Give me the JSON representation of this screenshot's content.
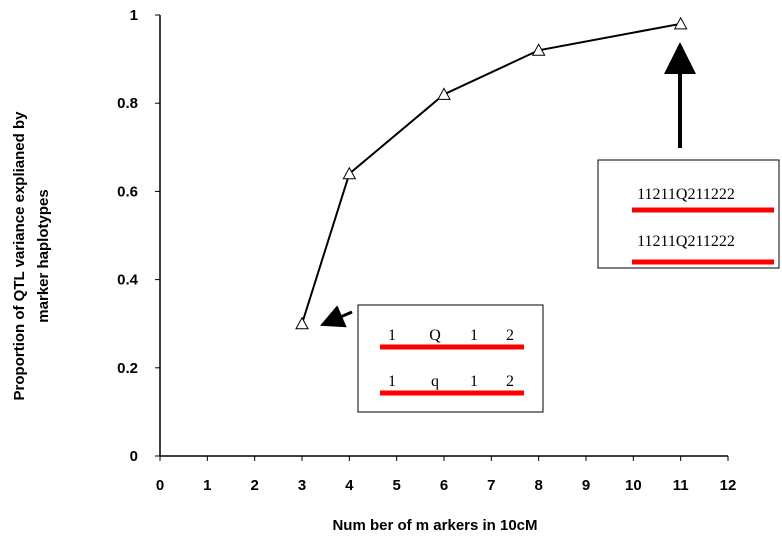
{
  "chart_data": {
    "type": "line",
    "xlabel": "Num ber of m arkers in 10cM",
    "ylabel": "Proportion of QTL variance explianed by",
    "ylabel2": "marker haplotypes",
    "xlim": [
      0,
      12
    ],
    "ylim": [
      0,
      1
    ],
    "x_ticks": [
      "0",
      "1",
      "2",
      "3",
      "4",
      "5",
      "6",
      "7",
      "8",
      "9",
      "10",
      "11",
      "12"
    ],
    "y_ticks": [
      "0",
      "0.2",
      "0.4",
      "0.6",
      "0.8",
      "1"
    ],
    "marker": "open-triangle",
    "line_color": "#000000",
    "grid": false,
    "series": [
      {
        "x": [
          3,
          4,
          6,
          8,
          11
        ],
        "y": [
          0.3,
          0.64,
          0.82,
          0.92,
          0.98
        ]
      }
    ],
    "annotations": [
      {
        "points_to": [
          3,
          0.3
        ],
        "lines": [
          [
            "1",
            "Q",
            "1",
            "2"
          ],
          [
            "1",
            "q",
            "1",
            "2"
          ]
        ],
        "underline_color": "#ff0000"
      },
      {
        "points_to": [
          11,
          0.98
        ],
        "lines": [
          "11211Q211222",
          "11211Q211222"
        ],
        "underline_color": "#ff0000"
      }
    ]
  }
}
